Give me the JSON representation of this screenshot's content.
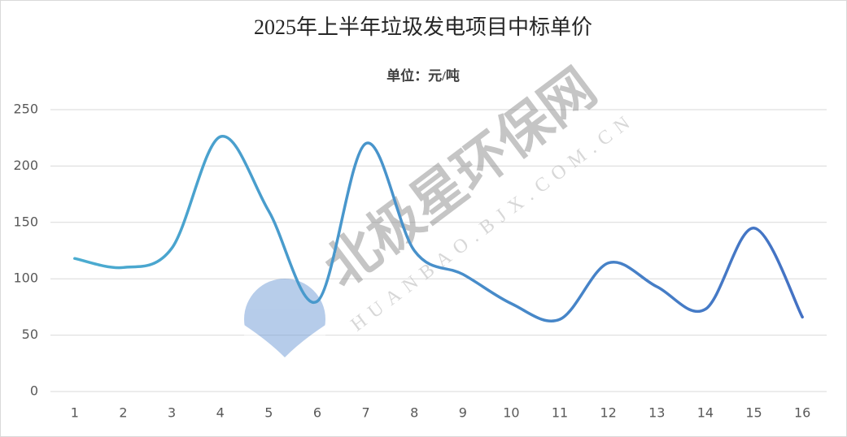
{
  "chart_data": {
    "type": "line",
    "title": "2025年上半年垃圾发电项目中标单价",
    "subtitle": "单位：元/吨",
    "categories": [
      "1",
      "2",
      "3",
      "4",
      "5",
      "6",
      "7",
      "8",
      "9",
      "10",
      "11",
      "12",
      "13",
      "14",
      "15",
      "16"
    ],
    "values": [
      118,
      110,
      127,
      226,
      160,
      80,
      220,
      125,
      104,
      78,
      64,
      114,
      93,
      73,
      145,
      66
    ],
    "color": "#4bacd0",
    "color_end": "#4472c4",
    "smooth": true,
    "ylim": [
      0,
      250
    ],
    "yticks": [
      0,
      50,
      100,
      150,
      200,
      250
    ],
    "grid": true,
    "watermark": [
      "北极星环保网",
      "HUANBAO.BJX.COM.CN"
    ]
  }
}
